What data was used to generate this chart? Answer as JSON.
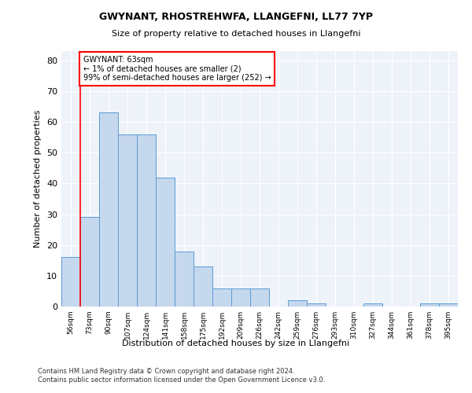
{
  "title": "GWYNANT, RHOSTREHWFA, LLANGEFNI, LL77 7YP",
  "subtitle": "Size of property relative to detached houses in Llangefni",
  "xlabel": "Distribution of detached houses by size in Llangefni",
  "ylabel": "Number of detached properties",
  "bar_color": "#c5d8ed",
  "bar_edge_color": "#5b9bd5",
  "background_color": "#eef3fa",
  "grid_color": "#ffffff",
  "annotation_text_line1": "GWYNANT: 63sqm",
  "annotation_text_line2": "← 1% of detached houses are smaller (2)",
  "annotation_text_line3": "99% of semi-detached houses are larger (252) →",
  "categories": [
    "56sqm",
    "73sqm",
    "90sqm",
    "107sqm",
    "124sqm",
    "141sqm",
    "158sqm",
    "175sqm",
    "192sqm",
    "209sqm",
    "226sqm",
    "242sqm",
    "259sqm",
    "276sqm",
    "293sqm",
    "310sqm",
    "327sqm",
    "344sqm",
    "361sqm",
    "378sqm",
    "395sqm"
  ],
  "values": [
    16,
    29,
    63,
    56,
    56,
    42,
    18,
    13,
    6,
    6,
    6,
    0,
    2,
    1,
    0,
    0,
    1,
    0,
    0,
    1,
    1
  ],
  "ylim": [
    0,
    83
  ],
  "yticks": [
    0,
    10,
    20,
    30,
    40,
    50,
    60,
    70,
    80
  ],
  "footer_line1": "Contains HM Land Registry data © Crown copyright and database right 2024.",
  "footer_line2": "Contains public sector information licensed under the Open Government Licence v3.0.",
  "figsize": [
    6.0,
    5.0
  ],
  "dpi": 100
}
